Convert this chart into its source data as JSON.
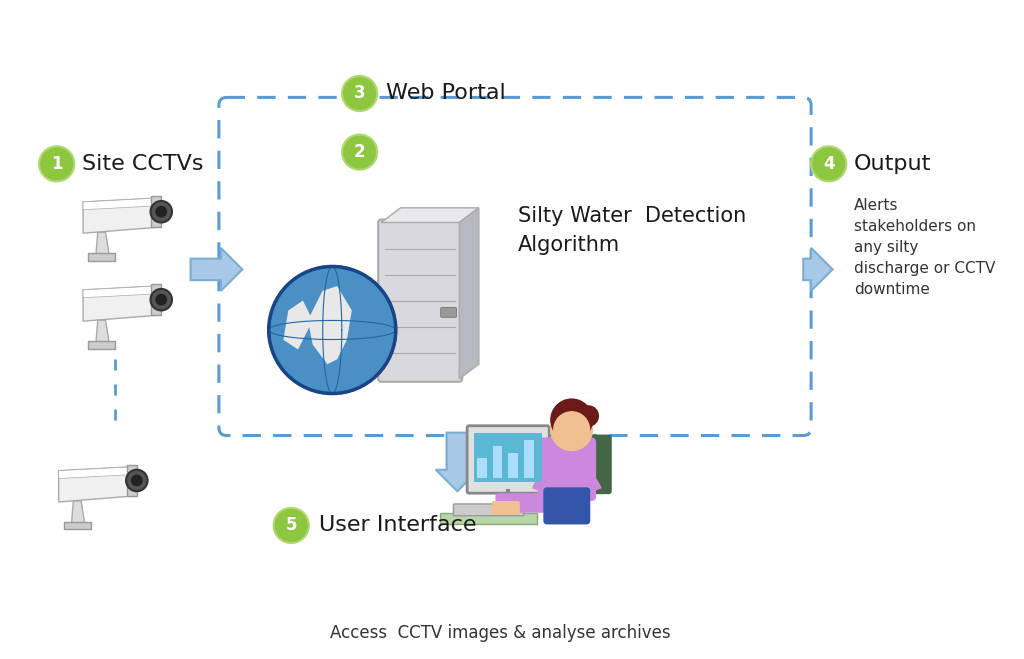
{
  "bg_color": "#ffffff",
  "circle_color": "#8dc63f",
  "circle_text_color": "#ffffff",
  "circle_border": "#6aaa20",
  "box_border_color": "#5b9bd5",
  "arrow_color_fill": "#a8c8e8",
  "arrow_color_edge": "#7badd4",
  "dashed_line_color": "#5b9bd5",
  "text_dark": "#1a1a1a",
  "text_mid": "#333333",
  "caption": "Access  CCTV images & analyse archives",
  "output_text": "Alerts\nstakeholders on\nany silty\ndischarge or CCTV\ndowntime",
  "node1_label": "Site CCTVs",
  "node2_label": "Silty Water  Detection\nAlgorithm",
  "node3_label": "Web Portal",
  "node4_label": "Output",
  "node5_label": "User Interface"
}
